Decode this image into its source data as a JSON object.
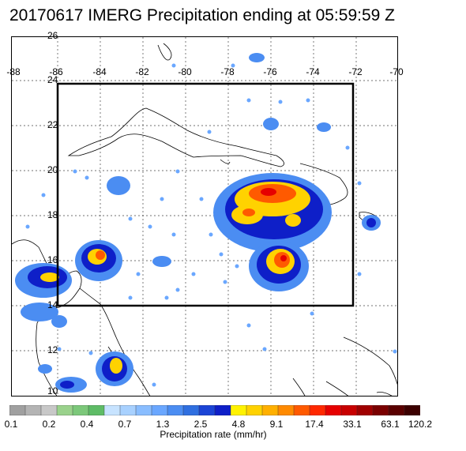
{
  "title": "20170617 IMERG Precipitation ending at 05:59:59 Z",
  "lon_labels": [
    "-88",
    "-86",
    "-84",
    "-82",
    "-80",
    "-78",
    "-76",
    "-74",
    "-72",
    "-70"
  ],
  "lat_labels": [
    "26",
    "24",
    "22",
    "20",
    "18",
    "16",
    "14",
    "12",
    "10"
  ],
  "colorbar": {
    "ticks": [
      "0.1",
      "0.2",
      "0.4",
      "0.7",
      "1.3",
      "2.5",
      "4.8",
      "9.1",
      "17.4",
      "33.1",
      "63.1",
      "120.2"
    ],
    "label": "Precipitation rate (mm/hr)",
    "colors": [
      "#a0a0a0",
      "#b4b4b4",
      "#c8c8c8",
      "#9ad28c",
      "#7cc87a",
      "#5ebc66",
      "#c7e3ff",
      "#a8d1ff",
      "#89bdff",
      "#6aa7ff",
      "#4b8df2",
      "#2f6fe0",
      "#1b44d6",
      "#0e1fc8",
      "#fff200",
      "#ffd200",
      "#ffb000",
      "#ff8a00",
      "#ff5a00",
      "#ff2800",
      "#e60000",
      "#c80000",
      "#a00000",
      "#7a0000",
      "#5a0000",
      "#3c0000"
    ]
  },
  "colors": {
    "light_rain": "#4b8df2",
    "moderate_rain": "#0e1fc8",
    "heavy_rain": "#ffd200",
    "very_heavy_rain": "#ff5a00",
    "extreme_rain": "#e60000",
    "coastline": "#000000",
    "box": "#000000"
  }
}
